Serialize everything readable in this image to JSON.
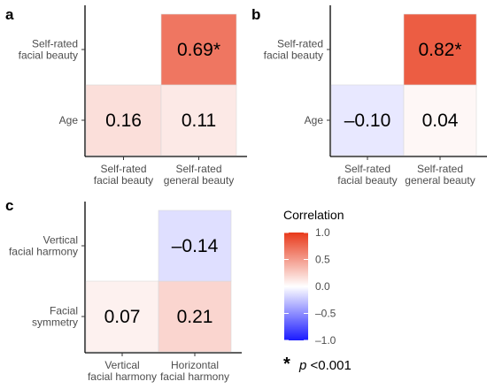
{
  "chart_data": [
    {
      "type": "heatmap",
      "panel": "a",
      "x_categories": [
        [
          "Self-rated",
          "facial beauty"
        ],
        [
          "Self-rated",
          "general beauty"
        ]
      ],
      "y_categories": [
        [
          "Age"
        ],
        [
          "Self-rated",
          "facial beauty"
        ]
      ],
      "cells": [
        {
          "x": 0,
          "y": 0,
          "value": 0.16,
          "label": "0.16"
        },
        {
          "x": 1,
          "y": 0,
          "value": 0.11,
          "label": "0.11"
        },
        {
          "x": 1,
          "y": 1,
          "value": 0.69,
          "label": "0.69*"
        }
      ]
    },
    {
      "type": "heatmap",
      "panel": "b",
      "x_categories": [
        [
          "Self-rated",
          "facial beauty"
        ],
        [
          "Self-rated",
          "general beauty"
        ]
      ],
      "y_categories": [
        [
          "Age"
        ],
        [
          "Self-rated",
          "facial beauty"
        ]
      ],
      "cells": [
        {
          "x": 0,
          "y": 0,
          "value": -0.1,
          "label": "–0.10"
        },
        {
          "x": 1,
          "y": 0,
          "value": 0.04,
          "label": "0.04"
        },
        {
          "x": 1,
          "y": 1,
          "value": 0.82,
          "label": "0.82*"
        }
      ]
    },
    {
      "type": "heatmap",
      "panel": "c",
      "x_categories": [
        [
          "Vertical",
          "facial harmony"
        ],
        [
          "Horizontal",
          "facial harmony"
        ]
      ],
      "y_categories": [
        [
          "Facial",
          "symmetry"
        ],
        [
          "Vertical",
          "facial harmony"
        ]
      ],
      "cells": [
        {
          "x": 0,
          "y": 0,
          "value": 0.07,
          "label": "0.07"
        },
        {
          "x": 1,
          "y": 0,
          "value": 0.21,
          "label": "0.21"
        },
        {
          "x": 1,
          "y": 1,
          "value": -0.14,
          "label": "–0.14"
        }
      ]
    }
  ],
  "legend": {
    "title": "Correlation",
    "range": [
      -1.0,
      1.0
    ],
    "ticks": [
      1.0,
      0.5,
      0.0,
      -0.5,
      -1.0
    ],
    "tick_labels": [
      "1.0",
      "0.5",
      "0.0",
      "–0.5",
      "–1.0"
    ],
    "colors": {
      "low": "#1a1aff",
      "mid": "#ffffff",
      "high": "#e8391a"
    }
  },
  "footnote": {
    "star": "*",
    "p": "p",
    "text": " <0.001"
  }
}
